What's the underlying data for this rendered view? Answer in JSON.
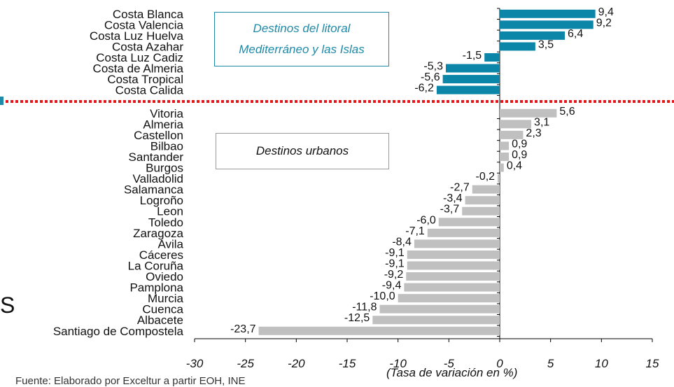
{
  "chart_data": {
    "type": "bar",
    "orientation": "horizontal",
    "categories": [
      "Costa Blanca",
      "Costa Valencia",
      "Costa Luz Huelva",
      "Costa Azahar",
      "Costa Luz Cadiz",
      "Costa de Almeria",
      "Costa Tropical",
      "Costa Calida",
      "Vitoria",
      "Almeria",
      "Castellon",
      "Bilbao",
      "Santander",
      "Burgos",
      "Valladolid",
      "Salamanca",
      "Logroño",
      "Leon",
      "Toledo",
      "Zaragoza",
      "Avila",
      "Cáceres",
      "La Coruña",
      "Oviedo",
      "Pamplona",
      "Murcia",
      "Cuenca",
      "Albacete",
      "Santiago de Compostela"
    ],
    "values": [
      9.4,
      9.2,
      6.4,
      3.5,
      -1.5,
      -5.3,
      -5.6,
      -6.2,
      5.6,
      3.1,
      2.3,
      0.9,
      0.9,
      0.4,
      -0.2,
      -2.7,
      -3.4,
      -3.7,
      -6.0,
      -7.1,
      -8.4,
      -9.1,
      -9.1,
      -9.2,
      -9.4,
      -10.0,
      -11.8,
      -12.5,
      -23.7
    ],
    "value_labels": [
      "9,4",
      "9,2",
      "6,4",
      "3,5",
      "-1,5",
      "-5,3",
      "-5,6",
      "-6,2",
      "5,6",
      "3,1",
      "2,3",
      "0,9",
      "0,9",
      "0,4",
      "-0,2",
      "-2,7",
      "-3,4",
      "-3,7",
      "-6,0",
      "-7,1",
      "-8,4",
      "-9,1",
      "-9,1",
      "-9,2",
      "-9,4",
      "-10,0",
      "-11,8",
      "-12,5",
      "-23,7"
    ],
    "groups": [
      {
        "label": "Destinos del litoral Mediterráneo y las Islas",
        "count": 8,
        "color": "#0b86a8"
      },
      {
        "label": "Destinos urbanos",
        "count": 21,
        "color": "#c0c0c0"
      }
    ],
    "xlim": [
      -30,
      15
    ],
    "xticks": [
      "-30",
      "-25",
      "-20",
      "-15",
      "-10",
      "-5",
      "0",
      "5",
      "10",
      "15"
    ],
    "xlabel": "(Tasa de variación en %)",
    "title": "",
    "grid": false,
    "separator_color": "#e3161b"
  },
  "boxes": {
    "litoral_line1": "Destinos del litoral",
    "litoral_line2": "Mediterráneo y las Islas",
    "urbano": "Destinos urbanos"
  },
  "source": "Fuente:  Elaborado por Exceltur a partir EOH, INE",
  "stray_glyph": "S"
}
